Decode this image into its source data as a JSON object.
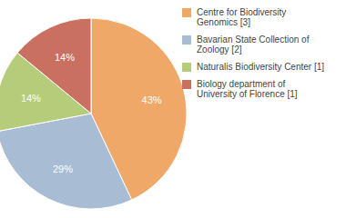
{
  "chart_data": {
    "type": "pie",
    "categories": [
      "Centre for Biodiversity\nGenomics [3]",
      "Bavarian State Collection of\nZoology [2]",
      "Naturalis Biodiversity Center [1]",
      "Biology department of\nUniversity of Florence [1]"
    ],
    "values": [
      43,
      29,
      14,
      14
    ],
    "value_labels": [
      "43%",
      "29%",
      "14%",
      "14%"
    ],
    "colors": [
      "#f0a868",
      "#a8bcd4",
      "#b5cc7a",
      "#c97060"
    ],
    "data_labels": true,
    "legend": "right"
  }
}
